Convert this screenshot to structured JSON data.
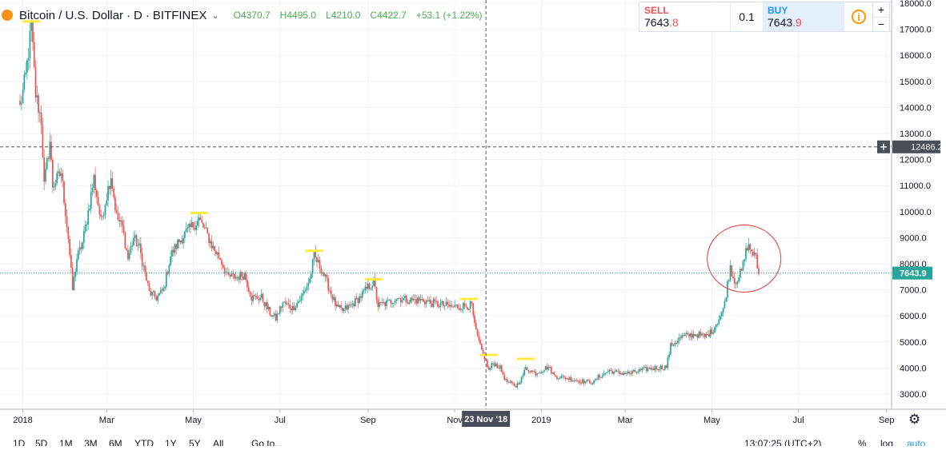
{
  "header": {
    "symbol": "Bitcoin / U.S. Dollar",
    "interval": "D",
    "exchange": "BITFINEX",
    "separator": "·",
    "open_label": "O",
    "open": "4370.7",
    "high_label": "H",
    "high": "4495.0",
    "low_label": "L",
    "low": "4210.0",
    "close_label": "C",
    "close": "4422.7",
    "change": "+53.1 (+1.22%)"
  },
  "trade": {
    "sell_label": "SELL",
    "sell_big": "7643",
    "sell_small": ".8",
    "spread": "0.1",
    "buy_label": "BUY",
    "buy_big": "7643",
    "buy_small": ".9",
    "info_icon": "i",
    "zoom_in": "+",
    "zoom_out": "−"
  },
  "price_scale": {
    "crosshair_value": "12486.2",
    "last_value": "7643.9"
  },
  "time_scale": {
    "crosshair_label": "23 Nov '18"
  },
  "bottom_bar": {
    "ranges": [
      "1D",
      "5D",
      "1M",
      "3M",
      "6M",
      "YTD",
      "1Y",
      "5Y",
      "All"
    ],
    "goto": "Go to...",
    "time": "13:07:25 (UTC+2)",
    "percent": "%",
    "log": "log",
    "auto": "auto"
  },
  "colors": {
    "up": "#26a69a",
    "down": "#ef5350",
    "highlight_bar": "#ffeb3b",
    "circle": "#e53935",
    "last_price": "#26a69a",
    "crosshair": "#555555"
  },
  "chart_data": {
    "type": "candlestick",
    "x_axis_labels": [
      "2018",
      "Mar",
      "May",
      "Jul",
      "Sep",
      "Nov",
      "2019",
      "Mar",
      "May",
      "Jul",
      "Sep"
    ],
    "y_ticks": [
      3000,
      4000,
      5000,
      6000,
      7000,
      8000,
      9000,
      10000,
      11000,
      12000,
      13000,
      14000,
      15000,
      16000,
      17000,
      18000
    ],
    "ylim": [
      2500,
      18000
    ],
    "start_date": "2017-12-30",
    "end_date": "2019-06-03",
    "crosshair": {
      "date": "2018-11-23",
      "price": 12486.2
    },
    "last_price": 7643.9,
    "anchors": [
      [
        "2017-12-30",
        14000
      ],
      [
        "2018-01-03",
        15200
      ],
      [
        "2018-01-07",
        17100
      ],
      [
        "2018-01-10",
        14500
      ],
      [
        "2018-01-14",
        13500
      ],
      [
        "2018-01-16",
        11000
      ],
      [
        "2018-01-20",
        12700
      ],
      [
        "2018-01-22",
        11000
      ],
      [
        "2018-01-28",
        11500
      ],
      [
        "2018-02-02",
        9000
      ],
      [
        "2018-02-05",
        7000
      ],
      [
        "2018-02-08",
        8200
      ],
      [
        "2018-02-12",
        8800
      ],
      [
        "2018-02-16",
        10000
      ],
      [
        "2018-02-20",
        11300
      ],
      [
        "2018-02-25",
        9600
      ],
      [
        "2018-03-04",
        11400
      ],
      [
        "2018-03-08",
        9800
      ],
      [
        "2018-03-12",
        9400
      ],
      [
        "2018-03-16",
        8200
      ],
      [
        "2018-03-20",
        9000
      ],
      [
        "2018-03-24",
        8600
      ],
      [
        "2018-03-31",
        6900
      ],
      [
        "2018-04-05",
        6700
      ],
      [
        "2018-04-10",
        7000
      ],
      [
        "2018-04-15",
        8300
      ],
      [
        "2018-04-20",
        8800
      ],
      [
        "2018-04-26",
        9200
      ],
      [
        "2018-05-05",
        9700
      ],
      [
        "2018-05-10",
        9200
      ],
      [
        "2018-05-15",
        8600
      ],
      [
        "2018-05-20",
        8200
      ],
      [
        "2018-05-25",
        7500
      ],
      [
        "2018-06-01",
        7500
      ],
      [
        "2018-06-06",
        7600
      ],
      [
        "2018-06-11",
        6700
      ],
      [
        "2018-06-18",
        6700
      ],
      [
        "2018-06-24",
        6100
      ],
      [
        "2018-06-28",
        5900
      ],
      [
        "2018-07-03",
        6500
      ],
      [
        "2018-07-10",
        6300
      ],
      [
        "2018-07-16",
        6700
      ],
      [
        "2018-07-22",
        7400
      ],
      [
        "2018-07-25",
        8300
      ],
      [
        "2018-07-31",
        7700
      ],
      [
        "2018-08-05",
        7000
      ],
      [
        "2018-08-10",
        6300
      ],
      [
        "2018-08-14",
        6200
      ],
      [
        "2018-08-20",
        6400
      ],
      [
        "2018-08-26",
        6700
      ],
      [
        "2018-09-01",
        7100
      ],
      [
        "2018-09-05",
        7300
      ],
      [
        "2018-09-08",
        6400
      ],
      [
        "2018-09-15",
        6500
      ],
      [
        "2018-09-21",
        6700
      ],
      [
        "2018-09-30",
        6600
      ],
      [
        "2018-10-10",
        6600
      ],
      [
        "2018-10-15",
        6500
      ],
      [
        "2018-10-30",
        6350
      ],
      [
        "2018-11-13",
        6400
      ],
      [
        "2018-11-15",
        5600
      ],
      [
        "2018-11-19",
        4800
      ],
      [
        "2018-11-22",
        4400
      ],
      [
        "2018-11-25",
        3900
      ],
      [
        "2018-11-28",
        4200
      ],
      [
        "2018-12-03",
        4000
      ],
      [
        "2018-12-07",
        3500
      ],
      [
        "2018-12-14",
        3300
      ],
      [
        "2018-12-18",
        3600
      ],
      [
        "2018-12-21",
        4000
      ],
      [
        "2018-12-28",
        3800
      ],
      [
        "2019-01-06",
        4050
      ],
      [
        "2019-01-10",
        3700
      ],
      [
        "2019-01-20",
        3600
      ],
      [
        "2019-01-28",
        3500
      ],
      [
        "2019-02-07",
        3450
      ],
      [
        "2019-02-10",
        3650
      ],
      [
        "2019-02-18",
        3900
      ],
      [
        "2019-02-24",
        3800
      ],
      [
        "2019-03-05",
        3800
      ],
      [
        "2019-03-15",
        3950
      ],
      [
        "2019-03-30",
        4050
      ],
      [
        "2019-04-02",
        4850
      ],
      [
        "2019-04-10",
        5200
      ],
      [
        "2019-04-20",
        5300
      ],
      [
        "2019-04-26",
        5200
      ],
      [
        "2019-05-01",
        5400
      ],
      [
        "2019-05-05",
        5800
      ],
      [
        "2019-05-09",
        6200
      ],
      [
        "2019-05-12",
        7200
      ],
      [
        "2019-05-14",
        7900
      ],
      [
        "2019-05-17",
        7300
      ],
      [
        "2019-05-22",
        7700
      ],
      [
        "2019-05-26",
        8700
      ],
      [
        "2019-05-29",
        8500
      ],
      [
        "2019-06-01",
        8200
      ],
      [
        "2019-06-03",
        7600
      ]
    ],
    "highlights": [
      {
        "date": "2018-01-07",
        "price": 17300
      },
      {
        "date": "2018-05-05",
        "price": 9950
      },
      {
        "date": "2018-07-25",
        "price": 8500
      },
      {
        "date": "2018-09-05",
        "price": 7400
      },
      {
        "date": "2018-11-11",
        "price": 6650
      },
      {
        "date": "2018-11-25",
        "price": 4500
      },
      {
        "date": "2018-12-21",
        "price": 4350
      }
    ],
    "circle": {
      "date": "2019-05-22",
      "price": 8200
    }
  }
}
